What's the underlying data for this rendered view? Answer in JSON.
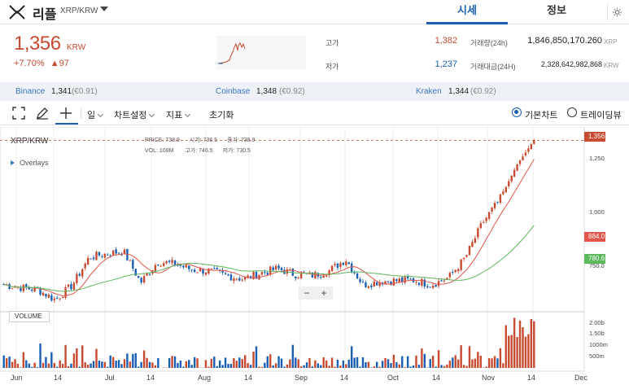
{
  "header": {
    "coin_name": "리플",
    "pair": "XRP/KRW",
    "tabs": [
      {
        "label": "시세",
        "active": true
      },
      {
        "label": "정보",
        "active": false
      }
    ],
    "icons": {
      "logo": "xrp-logo-icon",
      "dropdown": "chevron-down-icon",
      "settings": "gear-icon"
    }
  },
  "price": {
    "value": "1,356",
    "unit": "KRW",
    "change_pct": "+7.70%",
    "change_abs": "▲97",
    "high_label": "고가",
    "high": "1,382",
    "low_label": "저가",
    "low": "1,237",
    "volume_label": "거래량(24h)",
    "volume": "1,846,850,170.260",
    "volume_unit": "XRP",
    "turnover_label": "거래대금(24H)",
    "turnover": "2,328,642,982,868",
    "turnover_unit": "KRW"
  },
  "exchanges": [
    {
      "name": "Binance",
      "price": "1,341",
      "diff": "(€0.91)"
    },
    {
      "name": "Coinbase",
      "price": "1,348",
      "diff": "(€0.92)"
    },
    {
      "name": "Kraken",
      "price": "1,344",
      "diff": "(€0.92)"
    }
  ],
  "toolbar": {
    "period": "일",
    "chart_settings": "차트설정",
    "indicators": "지표",
    "reset": "초기화",
    "chart_modes": [
      {
        "label": "기본차트",
        "selected": true
      },
      {
        "label": "트레이딩뷰",
        "selected": false
      }
    ],
    "icons": [
      "fullscreen-icon",
      "pencil-icon",
      "crosshair-icon"
    ]
  },
  "chart": {
    "symbol": "XRP/KRW",
    "overlays_label": "Overlays",
    "info_row1": [
      {
        "k": "PRICE:",
        "v": "738.9"
      },
      {
        "k": "시가:",
        "v": "736.5"
      },
      {
        "k": "종가:",
        "v": "738.9"
      }
    ],
    "info_row2": [
      {
        "k": "VOL:",
        "v": "108M"
      },
      {
        "k": "고가:",
        "v": "746.5"
      },
      {
        "k": "저가:",
        "v": "730.5"
      }
    ],
    "current_price_tag": "1,356",
    "ma_short_tag": "884.0",
    "ma_long_tag": "780.6",
    "y_ticks": [
      "1,250",
      "1,000",
      "750.0"
    ],
    "volume_label": "VOLUME",
    "volume_ticks": [
      "2.00b",
      "1.50b",
      "1000m",
      "500m"
    ],
    "x_ticks": [
      "Jun",
      "14",
      "Jul",
      "14",
      "Aug",
      "14",
      "Sep",
      "14",
      "Oct",
      "14",
      "Nov",
      "14",
      "Dec"
    ],
    "zoom_out": "−",
    "zoom_in": "+",
    "colors": {
      "up": "#c84a31",
      "down": "#1a5fb4",
      "ma_short": "#e0564b",
      "ma_long": "#5cb85c"
    }
  },
  "chart_data": {
    "type": "candlestick",
    "ylim": [
      620,
      1400
    ],
    "price_series_anchors": [
      {
        "d": "Jun 1",
        "close": 730
      },
      {
        "d": "Jun 14",
        "close": 718
      },
      {
        "d": "Jun 25",
        "close": 708
      },
      {
        "d": "Jul 5",
        "close": 665
      },
      {
        "d": "Jul 14",
        "close": 728
      },
      {
        "d": "Jul 20",
        "close": 850
      },
      {
        "d": "Jul 28",
        "close": 865
      },
      {
        "d": "Aug 1",
        "close": 875
      },
      {
        "d": "Aug 6",
        "close": 740
      },
      {
        "d": "Aug 10",
        "close": 830
      },
      {
        "d": "Aug 18",
        "close": 820
      },
      {
        "d": "Aug 28",
        "close": 795
      },
      {
        "d": "Sep 5",
        "close": 790
      },
      {
        "d": "Sep 12",
        "close": 770
      },
      {
        "d": "Sep 20",
        "close": 755
      },
      {
        "d": "Sep 28",
        "close": 780
      },
      {
        "d": "Oct 3",
        "close": 800
      },
      {
        "d": "Oct 10",
        "close": 775
      },
      {
        "d": "Oct 18",
        "close": 770
      },
      {
        "d": "Oct 25",
        "close": 790
      },
      {
        "d": "Oct 28",
        "close": 840
      },
      {
        "d": "Nov 1",
        "close": 730
      },
      {
        "d": "Nov 8",
        "close": 745
      },
      {
        "d": "Nov 15",
        "close": 748
      },
      {
        "d": "Nov 22",
        "close": 750
      },
      {
        "d": "Nov 25",
        "close": 730
      },
      {
        "d": "Nov 28",
        "close": 760
      },
      {
        "d": "Dec 2",
        "close": 850
      },
      {
        "d": "Dec 5",
        "close": 1000
      },
      {
        "d": "Dec 8",
        "close": 1100
      },
      {
        "d": "Dec 10",
        "close": 1250
      },
      {
        "d": "Dec 12",
        "close": 1356
      }
    ],
    "volume_unit": "XRP",
    "volume_peak": 2000000000
  }
}
